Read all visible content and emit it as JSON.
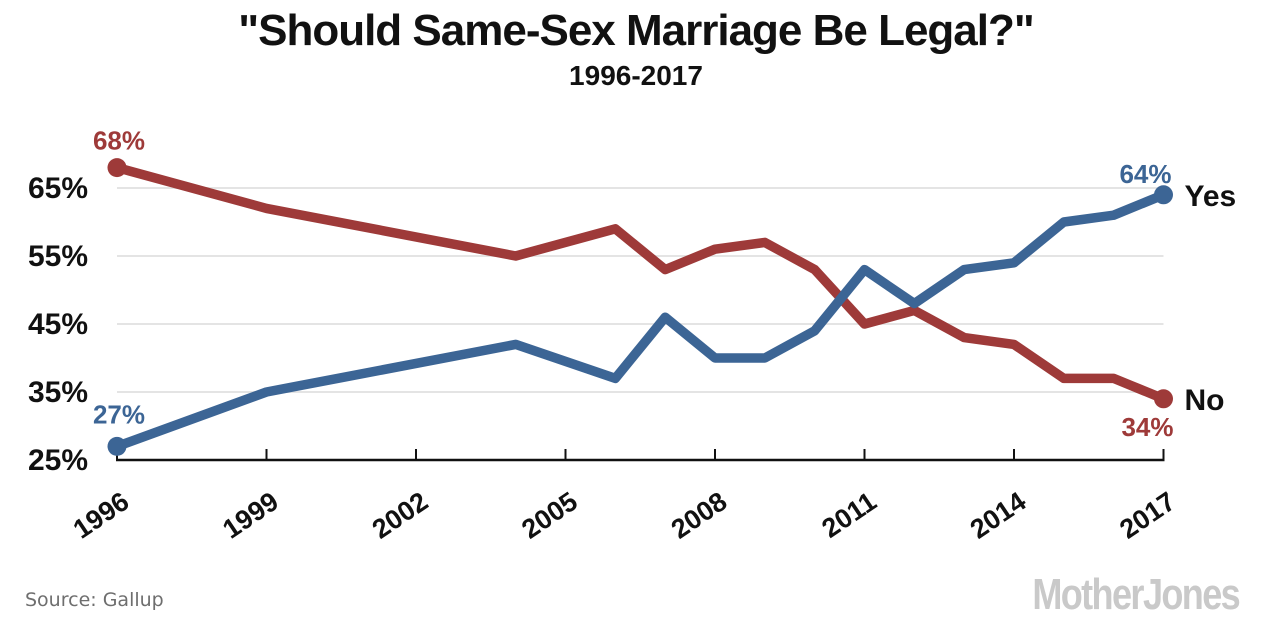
{
  "header": {
    "title": "\"Should Same-Sex Marriage Be Legal?\"",
    "subtitle": "1996-2017"
  },
  "footer": {
    "source": "Source:  Gallup",
    "logo": "Mother Jones"
  },
  "colors": {
    "yes_line": "#3C6595",
    "no_line": "#9E3A39",
    "text": "#111111",
    "gridline": "#E4E4E4",
    "axis": "#111111",
    "source_text": "#6e6e6e",
    "logo_gray": "#c9c9c9"
  },
  "chart_data": {
    "type": "line",
    "x": [
      1996,
      1999,
      2004,
      2006,
      2007,
      2008,
      2009,
      2010,
      2011,
      2012,
      2013,
      2014,
      2015,
      2016,
      2017
    ],
    "series": [
      {
        "name": "No",
        "color": "#9E3A39",
        "values": [
          68,
          62,
          55,
          59,
          53,
          56,
          57,
          53,
          45,
          47,
          43,
          42,
          37,
          37,
          34
        ],
        "start_label": "68%",
        "end_label": "34%"
      },
      {
        "name": "Yes",
        "color": "#3C6595",
        "values": [
          27,
          35,
          42,
          37,
          46,
          40,
          40,
          44,
          53,
          48,
          53,
          54,
          60,
          61,
          64
        ],
        "start_label": "27%",
        "end_label": "64%"
      }
    ],
    "x_ticks": [
      1996,
      1999,
      2002,
      2005,
      2008,
      2011,
      2014,
      2017
    ],
    "y_ticks": [
      25,
      35,
      45,
      55,
      65
    ],
    "y_tick_suffix": "%",
    "xlim": [
      1996,
      2017
    ],
    "ylim": [
      25,
      65
    ],
    "grid": "horizontal",
    "legend": "end-of-line-labels"
  }
}
